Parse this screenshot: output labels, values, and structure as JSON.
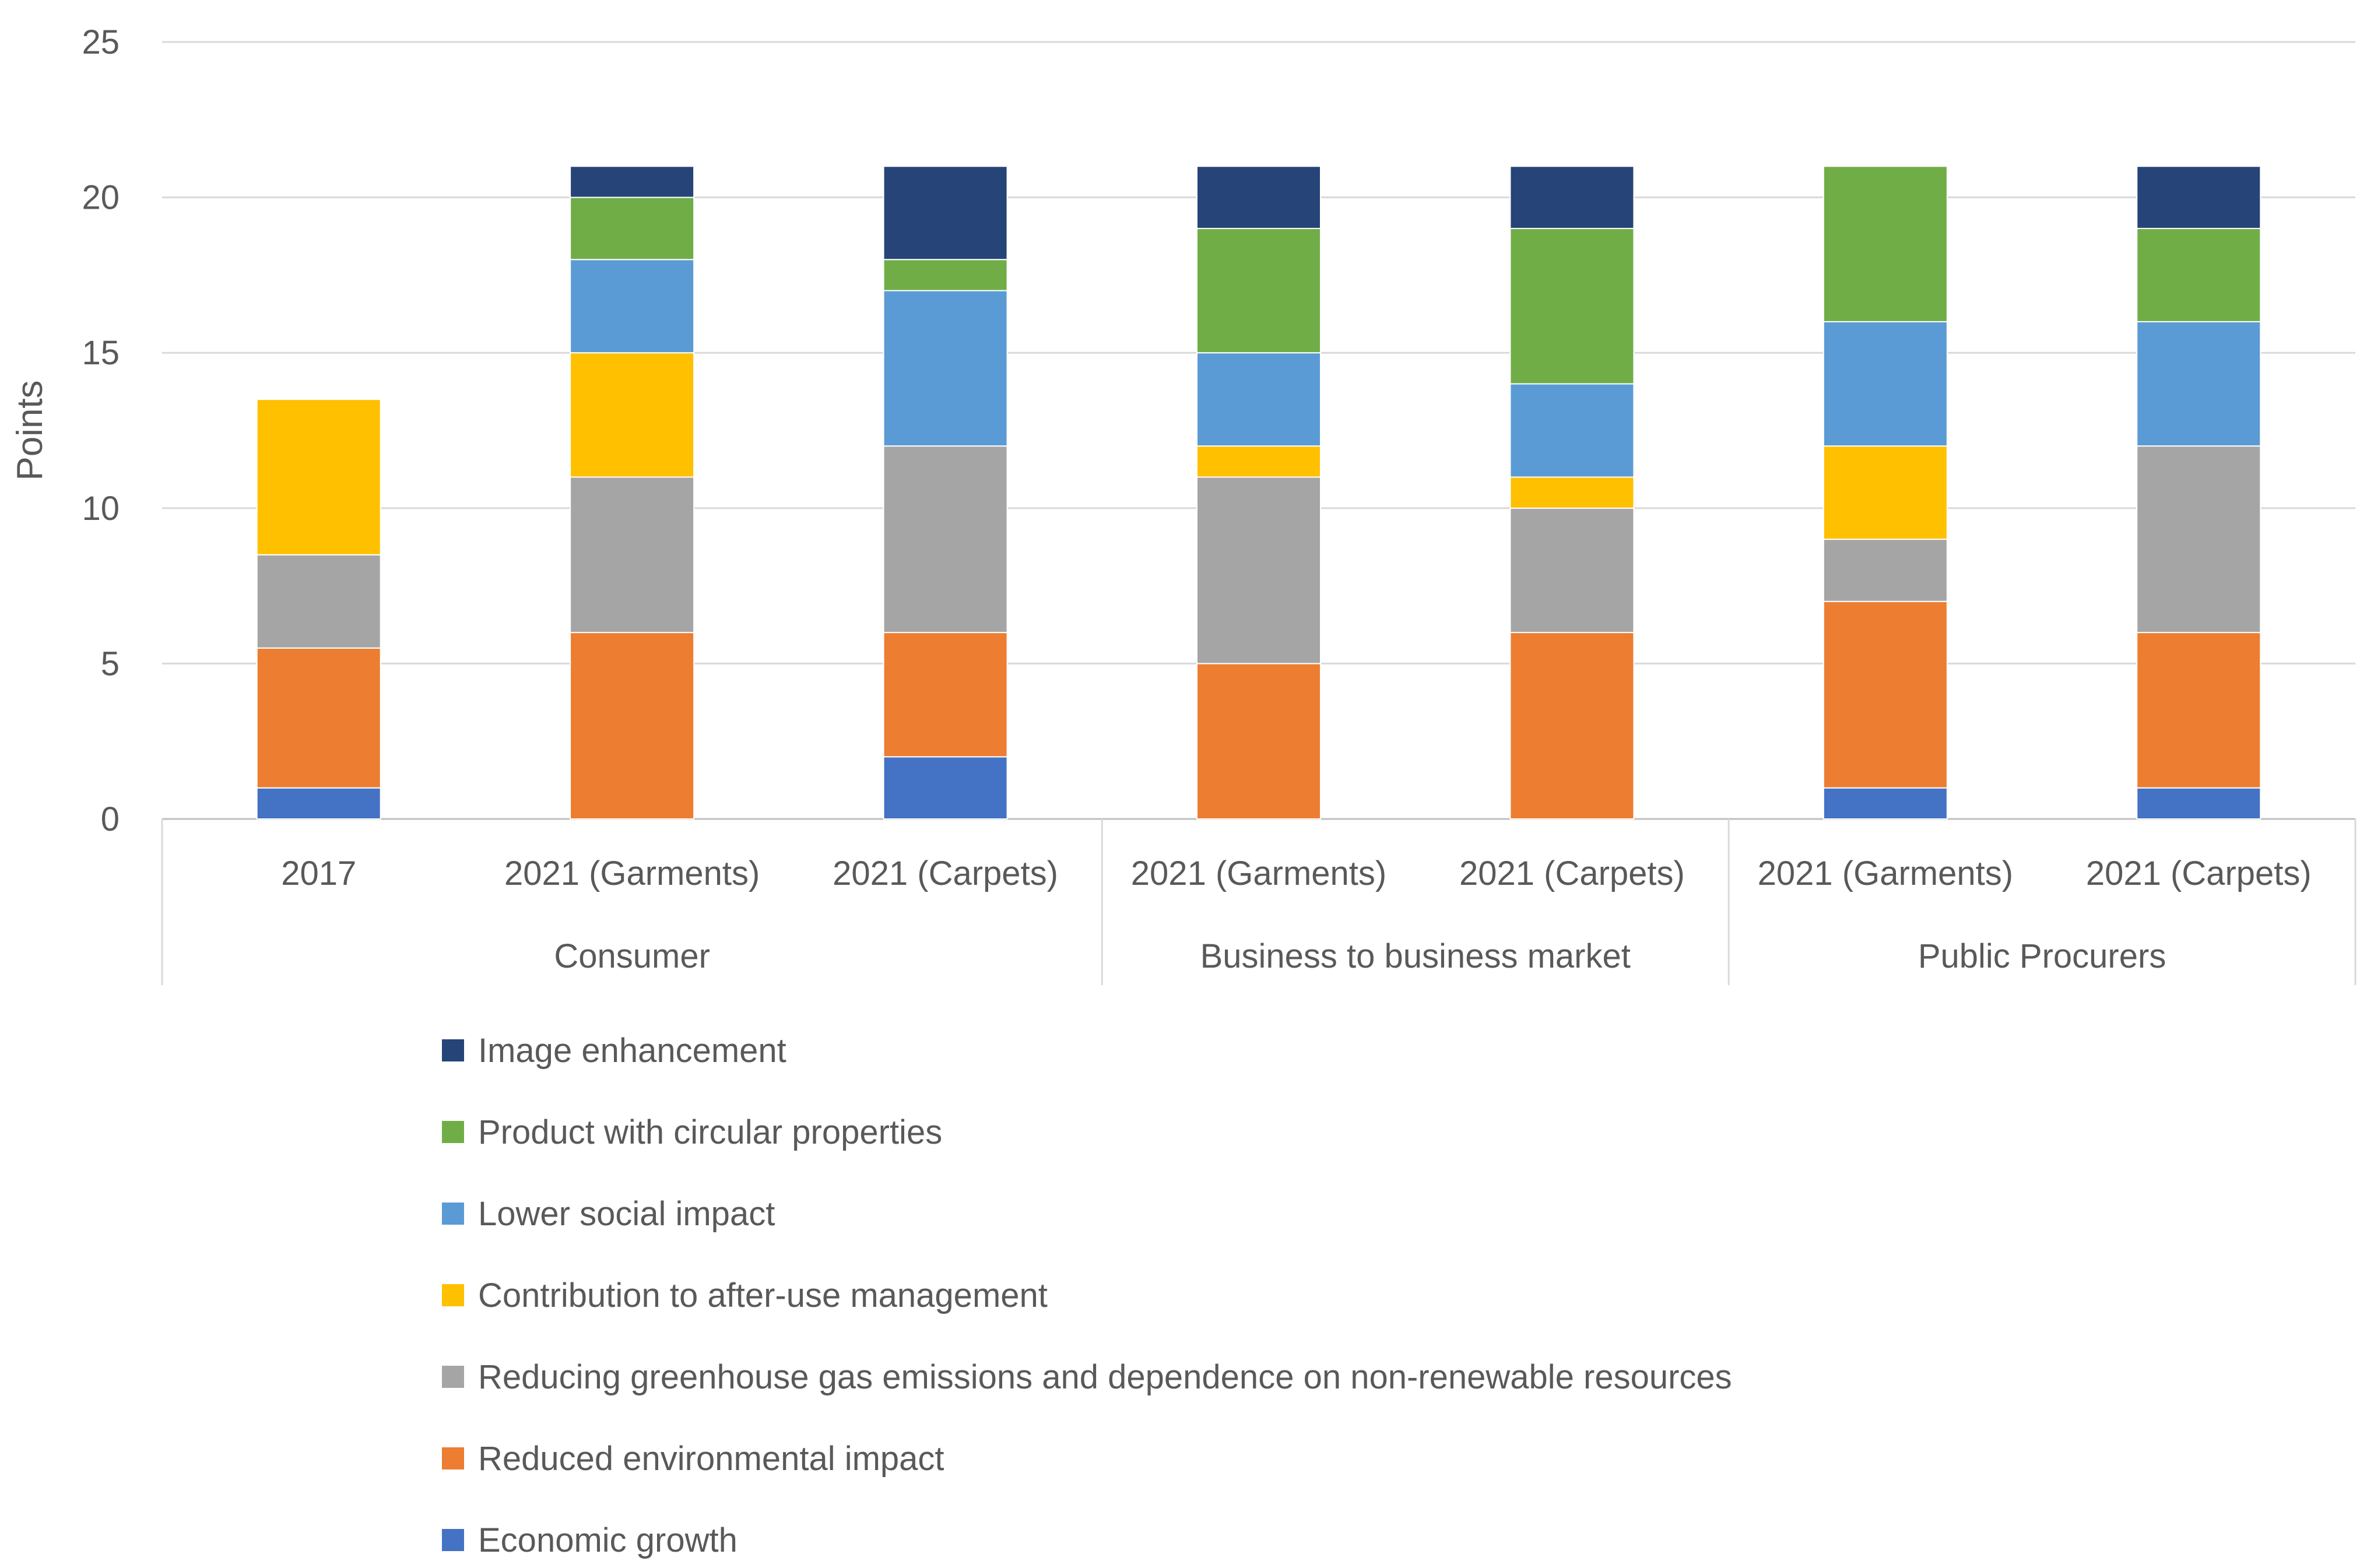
{
  "chart_data": {
    "type": "bar",
    "stacked": true,
    "title": "",
    "xlabel": "",
    "ylabel": "Points",
    "ylim": [
      0,
      25
    ],
    "yticks": [
      0,
      5,
      10,
      15,
      20,
      25
    ],
    "grid": true,
    "legend_position": "bottom",
    "categories": [
      "2017",
      "2021 (Garments)",
      "2021 (Carpets)",
      "2021 (Garments)",
      "2021 (Carpets)",
      "2021 (Garments)",
      "2021 (Carpets)"
    ],
    "groups": [
      {
        "label": "Consumer",
        "count": 3
      },
      {
        "label": "Business to business market",
        "count": 2
      },
      {
        "label": "Public Procurers",
        "count": 2
      }
    ],
    "series": [
      {
        "name": "Economic growth",
        "color": "#4472C4",
        "values": [
          1,
          0,
          2,
          0,
          0,
          1,
          1
        ]
      },
      {
        "name": "Reduced environmental impact",
        "color": "#ED7D31",
        "values": [
          4.5,
          6,
          4,
          5,
          6,
          6,
          5
        ]
      },
      {
        "name": "Reducing greenhouse gas emissions and dependence on non-renewable resources",
        "color": "#A5A5A5",
        "values": [
          3,
          5,
          6,
          6,
          4,
          2,
          6
        ]
      },
      {
        "name": "Contribution to after-use management",
        "color": "#FFC000",
        "values": [
          5,
          4,
          0,
          1,
          1,
          3,
          0
        ]
      },
      {
        "name": "Lower social impact",
        "color": "#5B9BD5",
        "values": [
          0,
          3,
          5,
          3,
          3,
          4,
          4
        ]
      },
      {
        "name": "Product with circular properties",
        "color": "#70AD47",
        "values": [
          0,
          2,
          1,
          4,
          5,
          5,
          3
        ]
      },
      {
        "name": "Image enhancement",
        "color": "#264478",
        "values": [
          0,
          1,
          3,
          2,
          2,
          0,
          2
        ]
      }
    ]
  }
}
